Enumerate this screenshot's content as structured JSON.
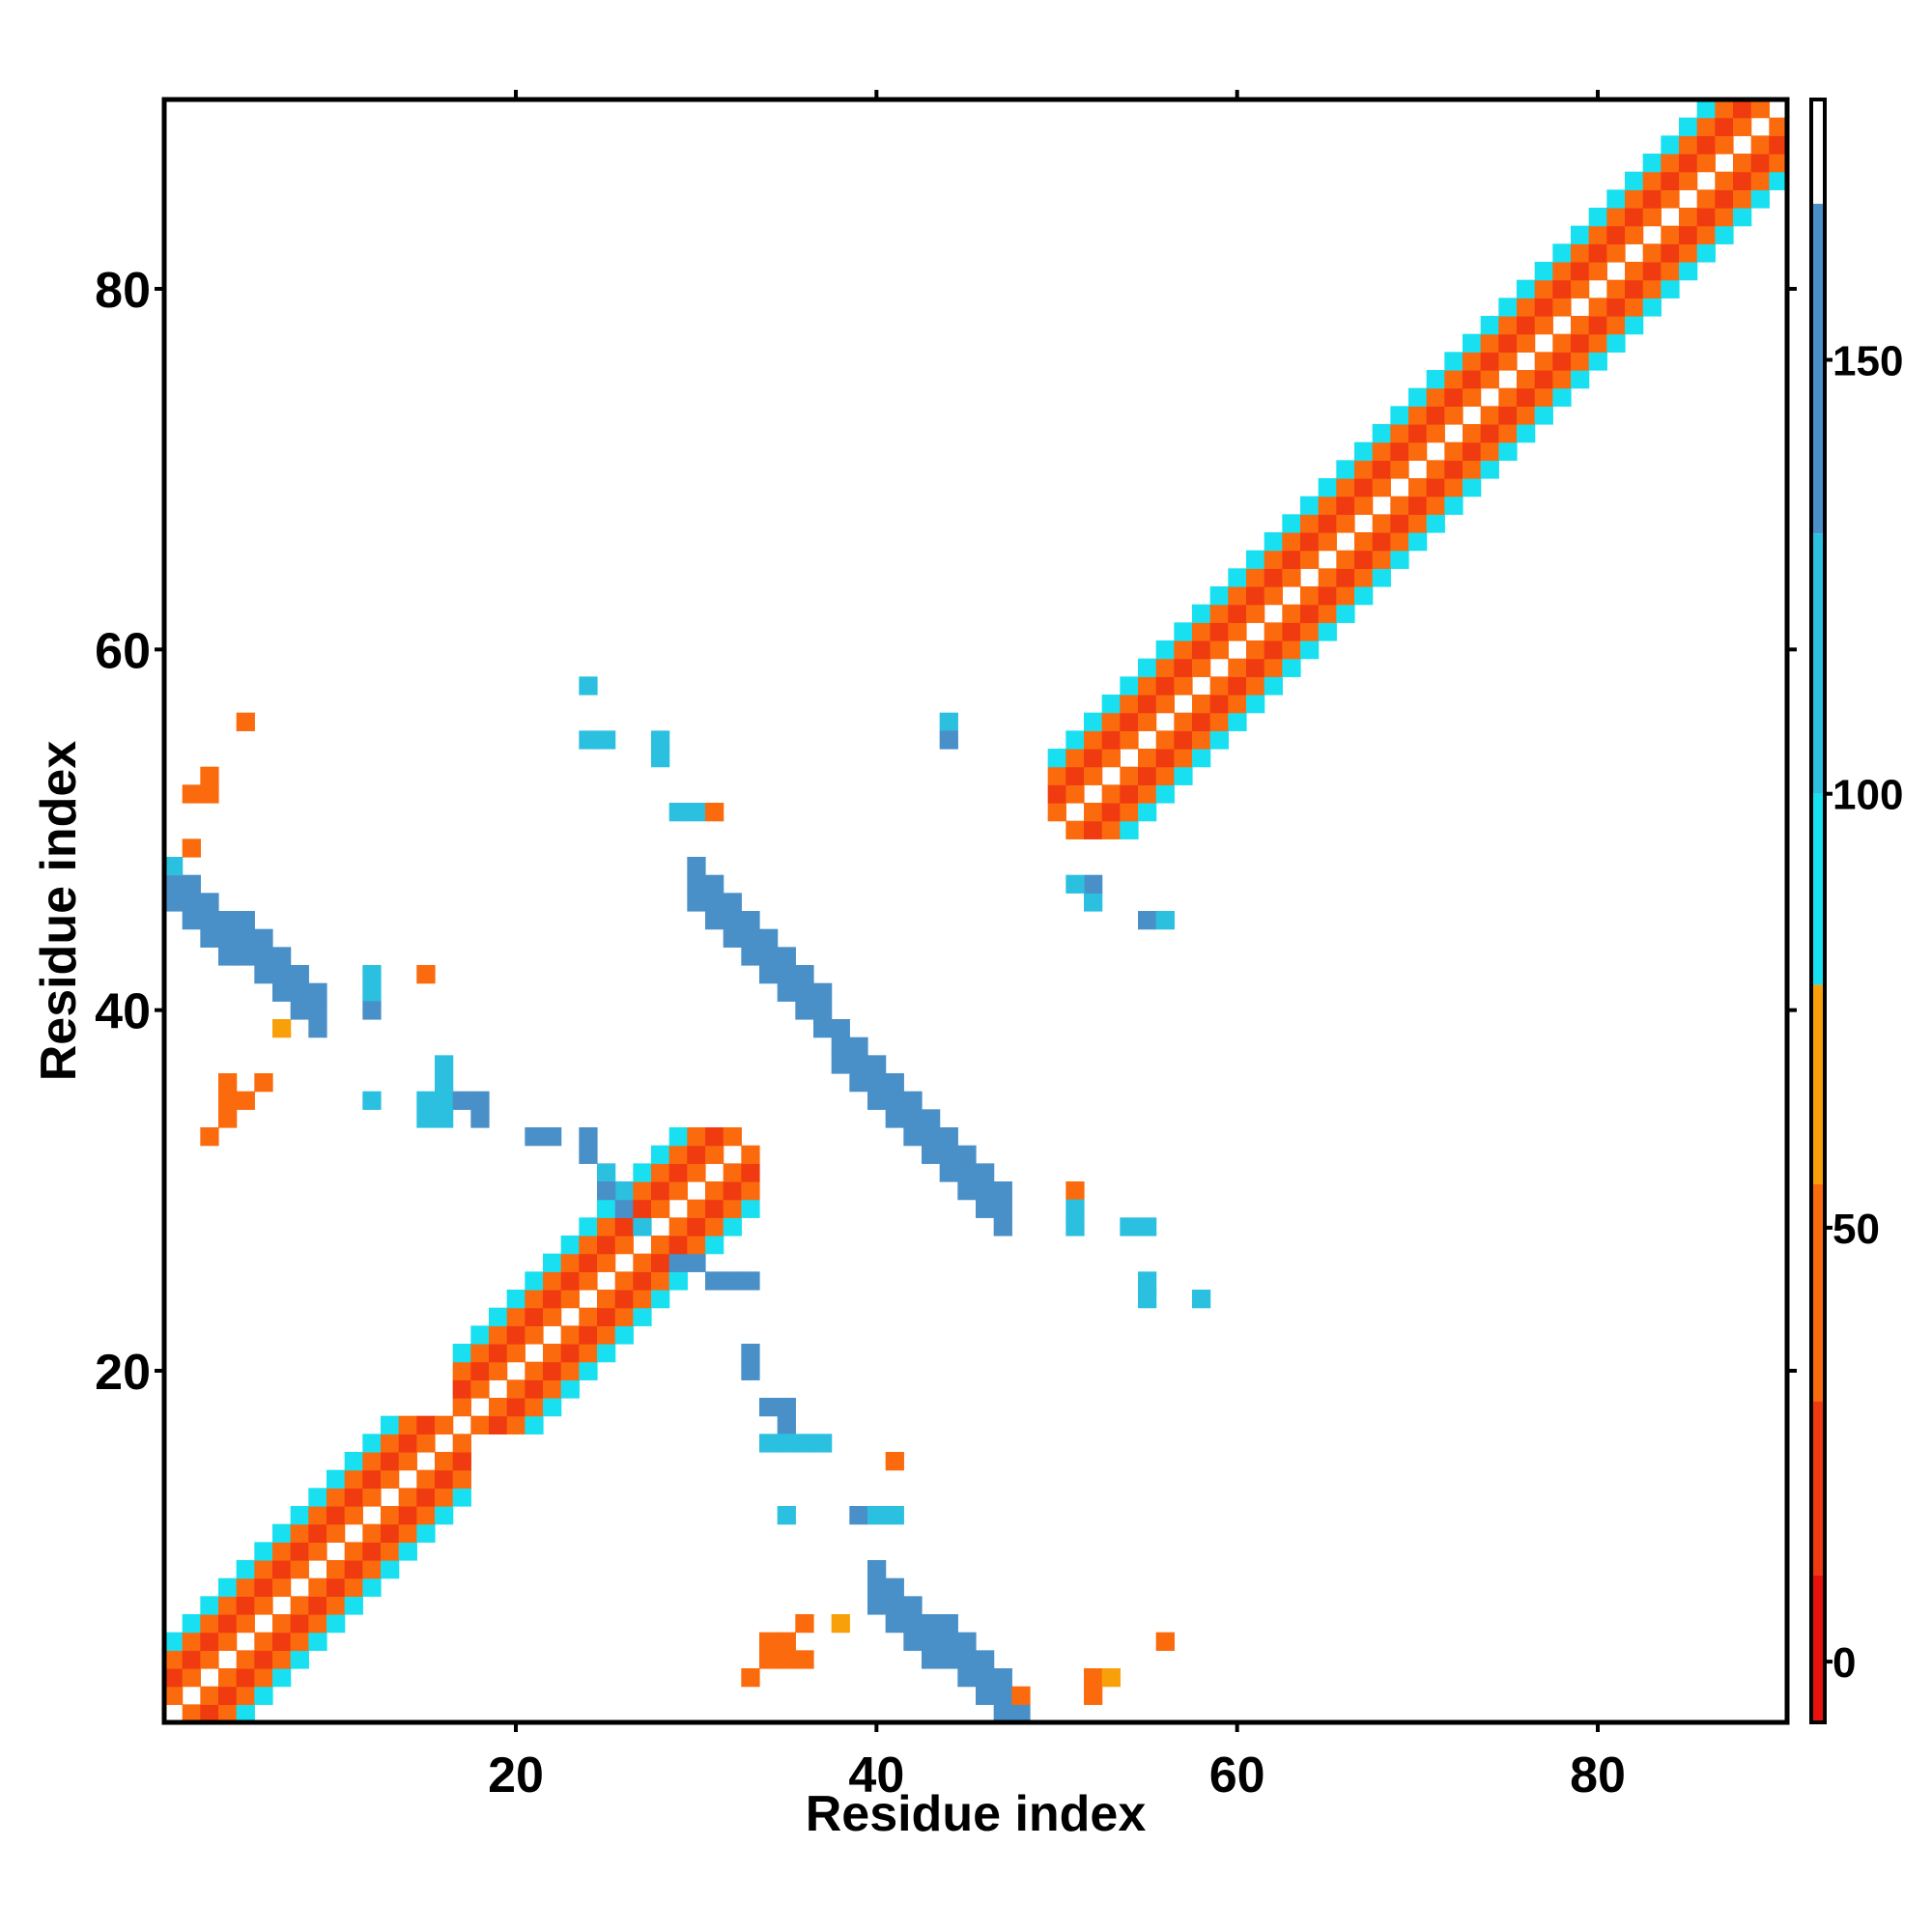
{
  "chart_data": {
    "type": "heatmap",
    "title": "",
    "xlabel": "Residue index",
    "ylabel": "Residue index",
    "xlim": [
      0.5,
      90.5
    ],
    "ylim": [
      0.5,
      90.5
    ],
    "x_ticks": [
      20,
      40,
      60,
      80
    ],
    "y_ticks": [
      20,
      40,
      60,
      80
    ],
    "colorbar": {
      "ticks": [
        0,
        50,
        100,
        150
      ],
      "range": [
        -7,
        180
      ],
      "bands": [
        {
          "from": -7,
          "to": 10,
          "color": "#e8120c"
        },
        {
          "from": 10,
          "to": 30,
          "color": "#f03a10"
        },
        {
          "from": 30,
          "to": 55,
          "color": "#fb6a0c"
        },
        {
          "from": 55,
          "to": 78,
          "color": "#f8a00a"
        },
        {
          "from": 78,
          "to": 100,
          "color": "#18e0f0"
        },
        {
          "from": 100,
          "to": 130,
          "color": "#2cc0e0"
        },
        {
          "from": 130,
          "to": 168,
          "color": "#4a90c8"
        },
        {
          "from": 168,
          "to": 180,
          "color": "#ffffff"
        }
      ]
    },
    "diagonal_band": {
      "description_values": "cells along |i-j|<=4 with value depending on offset",
      "offset_values": {
        "0": null,
        "1": 45,
        "2": 15,
        "3": 45,
        "4": 95
      },
      "helix_ranges": [
        [
          1,
          16
        ],
        [
          17,
          32
        ],
        [
          50,
          90
        ]
      ]
    },
    "clusters": [
      {
        "x_from": 30,
        "x_to": 37,
        "y_from": 40,
        "y_to": 47,
        "value": 150,
        "orientation": "anti"
      },
      {
        "x_from": 38,
        "x_to": 47,
        "y_from": 29,
        "y_to": 38,
        "value": 150,
        "orientation": "anti"
      },
      {
        "x_from": 1,
        "x_to": 9,
        "y_from": 40,
        "y_to": 47,
        "value": 150,
        "orientation": "anti"
      },
      {
        "x_from": 40,
        "x_to": 48,
        "y_from": 1,
        "y_to": 8,
        "value": 150,
        "orientation": "anti"
      }
    ],
    "cells": [
      [
        24,
        58,
        100
      ],
      [
        24,
        55,
        100
      ],
      [
        25,
        55,
        100
      ],
      [
        28,
        55,
        100
      ],
      [
        28,
        54,
        100
      ],
      [
        29,
        51,
        100
      ],
      [
        30,
        51,
        100
      ],
      [
        31,
        51,
        45
      ],
      [
        5,
        56,
        45
      ],
      [
        3,
        53,
        45
      ],
      [
        2,
        52,
        45
      ],
      [
        3,
        52,
        45
      ],
      [
        2,
        49,
        45
      ],
      [
        1,
        48,
        100
      ],
      [
        44,
        56,
        100
      ],
      [
        44,
        55,
        150
      ],
      [
        12,
        42,
        100
      ],
      [
        12,
        41,
        100
      ],
      [
        12,
        40,
        150
      ],
      [
        15,
        42,
        45
      ],
      [
        16,
        37,
        100
      ],
      [
        16,
        36,
        100
      ],
      [
        15,
        35,
        100
      ],
      [
        16,
        35,
        100
      ],
      [
        17,
        35,
        150
      ],
      [
        18,
        35,
        150
      ],
      [
        15,
        34,
        100
      ],
      [
        16,
        34,
        100
      ],
      [
        18,
        34,
        150
      ],
      [
        12,
        35,
        100
      ],
      [
        4,
        36,
        45
      ],
      [
        4,
        35,
        45
      ],
      [
        5,
        35,
        45
      ],
      [
        6,
        36,
        45
      ],
      [
        4,
        34,
        45
      ],
      [
        3,
        33,
        45
      ],
      [
        7,
        39,
        65
      ],
      [
        21,
        33,
        150
      ],
      [
        22,
        33,
        150
      ],
      [
        24,
        33,
        150
      ],
      [
        24,
        32,
        150
      ],
      [
        25,
        31,
        100
      ],
      [
        26,
        30,
        100
      ],
      [
        25,
        30,
        150
      ],
      [
        26,
        29,
        150
      ],
      [
        27,
        28,
        100
      ],
      [
        29,
        26,
        150
      ],
      [
        30,
        26,
        150
      ],
      [
        31,
        25,
        150
      ],
      [
        32,
        25,
        150
      ],
      [
        33,
        25,
        150
      ],
      [
        33,
        21,
        150
      ],
      [
        33,
        20,
        150
      ],
      [
        34,
        18,
        150
      ],
      [
        35,
        18,
        150
      ],
      [
        35,
        17,
        150
      ],
      [
        34,
        16,
        100
      ],
      [
        35,
        16,
        100
      ],
      [
        36,
        16,
        100
      ],
      [
        37,
        16,
        100
      ],
      [
        35,
        12,
        100
      ],
      [
        39,
        12,
        150
      ],
      [
        40,
        12,
        100
      ],
      [
        41,
        12,
        100
      ],
      [
        41,
        15,
        45
      ],
      [
        51,
        30,
        45
      ],
      [
        51,
        29,
        100
      ],
      [
        51,
        28,
        100
      ],
      [
        54,
        28,
        100
      ],
      [
        55,
        28,
        100
      ],
      [
        55,
        25,
        100
      ],
      [
        55,
        24,
        100
      ],
      [
        58,
        24,
        100
      ],
      [
        55,
        45,
        150
      ],
      [
        56,
        45,
        100
      ],
      [
        52,
        46,
        100
      ],
      [
        52,
        47,
        150
      ],
      [
        51,
        47,
        100
      ],
      [
        33,
        3,
        45
      ],
      [
        34,
        4,
        45
      ],
      [
        35,
        4,
        45
      ],
      [
        35,
        5,
        45
      ],
      [
        34,
        5,
        45
      ],
      [
        36,
        6,
        45
      ],
      [
        38,
        6,
        65
      ],
      [
        36,
        4,
        45
      ],
      [
        48,
        2,
        45
      ],
      [
        52,
        3,
        45
      ],
      [
        53,
        3,
        65
      ],
      [
        52,
        2,
        45
      ],
      [
        56,
        5,
        45
      ]
    ]
  }
}
